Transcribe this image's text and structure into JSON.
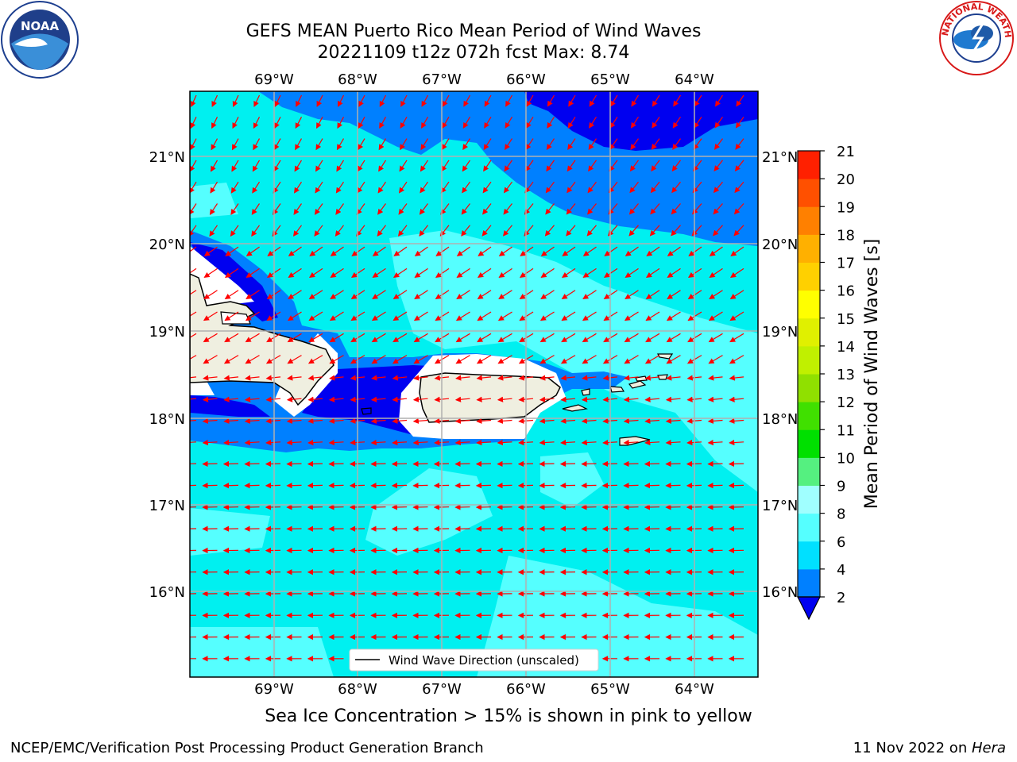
{
  "title": {
    "line1": "GEFS MEAN Puerto Rico Mean Period of Wind Waves",
    "line2": "20221109 t12z 072h fcst   Max: 8.74"
  },
  "map": {
    "lon_labels": [
      "69°W",
      "68°W",
      "67°W",
      "66°W",
      "65°W",
      "64°W"
    ],
    "lat_labels": [
      "21°N",
      "20°N",
      "19°N",
      "18°N",
      "17°N",
      "16°N"
    ],
    "legend_label": "Wind Wave Direction (unscaled)",
    "colors": {
      "land": "#efefe0",
      "ocean_light": "#00f0f0",
      "ocean_pale": "#55ffff",
      "mid": "#0080ff",
      "deep": "#0000f0",
      "arrow": "#ff0000"
    }
  },
  "colorbar": {
    "label": "Mean Period of Wind Waves [s]",
    "ticks": [
      "2",
      "4",
      "6",
      "8",
      "9",
      "10",
      "11",
      "12",
      "13",
      "14",
      "15",
      "16",
      "17",
      "18",
      "19",
      "20",
      "21"
    ],
    "colors": [
      "#0080ff",
      "#00e0ff",
      "#55ffff",
      "#a0ffff",
      "#55f080",
      "#00e000",
      "#40e000",
      "#90e000",
      "#c0f000",
      "#e0f000",
      "#ffff00",
      "#ffd000",
      "#ffb000",
      "#ff8000",
      "#ff5000",
      "#ff2000"
    ],
    "under_color": "#0000f0"
  },
  "caption": "Sea Ice Concentration > 15% is shown in pink to yellow",
  "footer": {
    "left": "NCEP/EMC/Verification Post Processing Product Generation Branch",
    "right_prefix": "11 Nov 2022 on ",
    "right_host": "Hera"
  },
  "logos": {
    "noaa_text": "NOAA",
    "nws_text": "NATIONAL WEATHER SERVICE"
  }
}
